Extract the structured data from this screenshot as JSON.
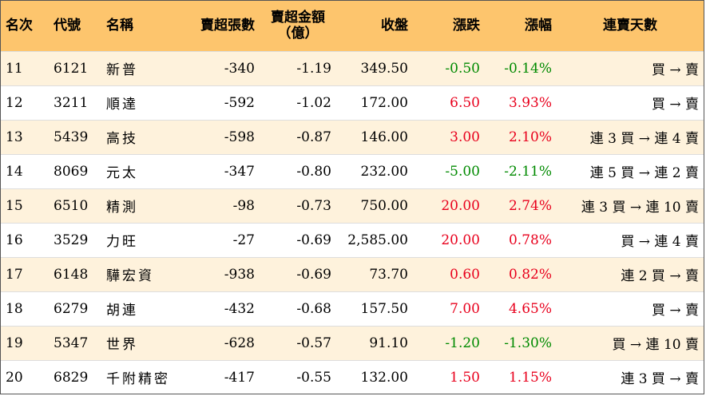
{
  "columns": [
    "名次",
    "代號",
    "名稱",
    "賣超張數",
    "賣超金額",
    "（億）",
    "收盤",
    "漲跌",
    "漲幅",
    "連賣天數"
  ],
  "rows": [
    {
      "rank": "11",
      "code": "6121",
      "name": "新普",
      "lots": "-340",
      "amount": "-1.19",
      "close": "349.50",
      "change": "-0.50",
      "pct": "-0.14%",
      "streak": "買 → 賣",
      "dir": "down"
    },
    {
      "rank": "12",
      "code": "3211",
      "name": "順達",
      "lots": "-592",
      "amount": "-1.02",
      "close": "172.00",
      "change": "6.50",
      "pct": "3.93%",
      "streak": "買 → 賣",
      "dir": "up"
    },
    {
      "rank": "13",
      "code": "5439",
      "name": "高技",
      "lots": "-598",
      "amount": "-0.87",
      "close": "146.00",
      "change": "3.00",
      "pct": "2.10%",
      "streak": "連 3 買 → 連 4 賣",
      "dir": "up"
    },
    {
      "rank": "14",
      "code": "8069",
      "name": "元太",
      "lots": "-347",
      "amount": "-0.80",
      "close": "232.00",
      "change": "-5.00",
      "pct": "-2.11%",
      "streak": "連 5 買 → 連 2 賣",
      "dir": "down"
    },
    {
      "rank": "15",
      "code": "6510",
      "name": "精測",
      "lots": "-98",
      "amount": "-0.73",
      "close": "750.00",
      "change": "20.00",
      "pct": "2.74%",
      "streak": "連 3 買 → 連 10 賣",
      "dir": "up"
    },
    {
      "rank": "16",
      "code": "3529",
      "name": "力旺",
      "lots": "-27",
      "amount": "-0.69",
      "close": "2,585.00",
      "change": "20.00",
      "pct": "0.78%",
      "streak": "買 → 連 4 賣",
      "dir": "up"
    },
    {
      "rank": "17",
      "code": "6148",
      "name": "驊宏資",
      "lots": "-938",
      "amount": "-0.69",
      "close": "73.70",
      "change": "0.60",
      "pct": "0.82%",
      "streak": "連 2 買 → 賣",
      "dir": "up"
    },
    {
      "rank": "18",
      "code": "6279",
      "name": "胡連",
      "lots": "-432",
      "amount": "-0.68",
      "close": "157.50",
      "change": "7.00",
      "pct": "4.65%",
      "streak": "買 → 賣",
      "dir": "up"
    },
    {
      "rank": "19",
      "code": "5347",
      "name": "世界",
      "lots": "-628",
      "amount": "-0.57",
      "close": "91.10",
      "change": "-1.20",
      "pct": "-1.30%",
      "streak": "買 → 連 10 賣",
      "dir": "down"
    },
    {
      "rank": "20",
      "code": "6829",
      "name": "千附精密",
      "lots": "-417",
      "amount": "-0.55",
      "close": "132.00",
      "change": "1.50",
      "pct": "1.15%",
      "streak": "連 3 買 → 賣",
      "dir": "up"
    }
  ],
  "colors": {
    "header_bg": "#fdc56d",
    "odd_row_bg": "#fef2dc",
    "up": "#e8001c",
    "down": "#008a00"
  }
}
